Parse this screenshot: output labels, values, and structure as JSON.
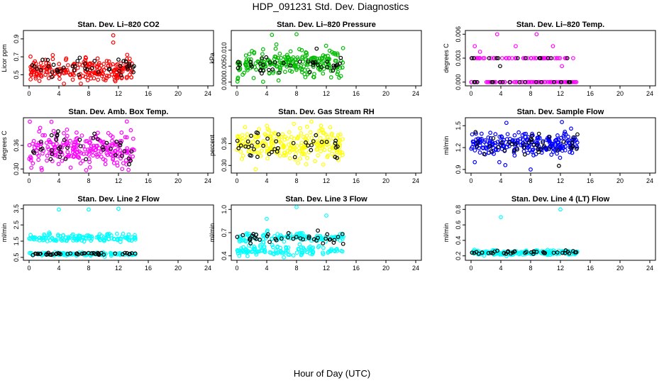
{
  "figure": {
    "title": "HDP_091231  Std. Dev. Diagnostics",
    "xlabel": "Hour of Day (UTC)"
  },
  "colors": {
    "red": "#ff0000",
    "green": "#00bb00",
    "magenta": "#ff00ff",
    "yellow": "#ffff00",
    "blue": "#0000ff",
    "cyan": "#00ffff",
    "black": "#000000"
  },
  "chart_data": [
    {
      "type": "scatter",
      "title": "Stan. Dev. Li–820 CO2",
      "ylabel": "Licor ppm",
      "xlim": [
        0,
        24
      ],
      "xticks": [
        "0",
        "4",
        "8",
        "12",
        "16",
        "20",
        "24"
      ],
      "ylim": [
        0.4,
        0.97
      ],
      "yticks": [
        {
          "v": 0.5,
          "l": "0.5"
        },
        {
          "v": 0.7,
          "l": "0.7"
        },
        {
          "v": 0.9,
          "l": "0.9"
        }
      ],
      "color": "red",
      "x_range": [
        0,
        14.3
      ],
      "bands": [
        {
          "center": 0.55,
          "spread": 0.07,
          "weight": 1.0
        }
      ],
      "outliers": [
        {
          "x": 11.3,
          "y": 0.94
        },
        {
          "x": 11.3,
          "y": 0.86
        },
        {
          "x": 13.5,
          "y": 0.68
        }
      ],
      "black_outliers": [
        {
          "x": 6.8,
          "y": 0.69
        },
        {
          "x": 13.0,
          "y": 0.65
        }
      ],
      "n": 220,
      "black_n": 40,
      "black_bands": [
        {
          "center": 0.58,
          "spread": 0.05,
          "weight": 1.0
        }
      ]
    },
    {
      "type": "scatter",
      "title": "Stan. Dev. Li–820 Pressure",
      "ylabel": "kPa",
      "xlim": [
        0,
        24
      ],
      "xticks": [
        "0",
        "4",
        "8",
        "12",
        "16",
        "20",
        "24"
      ],
      "ylim": [
        -0.0005,
        0.0155
      ],
      "yticks": [
        {
          "v": 0.0,
          "l": "0.000"
        },
        {
          "v": 0.005,
          "l": "0.005"
        },
        {
          "v": 0.01,
          "l": "0.010"
        }
      ],
      "color": "green",
      "x_range": [
        0,
        14.3
      ],
      "bands": [
        {
          "center": 0.0055,
          "spread": 0.0022,
          "weight": 1.0
        }
      ],
      "outliers": [
        {
          "x": 4.7,
          "y": 0.0148
        },
        {
          "x": 8.0,
          "y": 0.015
        },
        {
          "x": 5.3,
          "y": 0.0118
        }
      ],
      "black_outliers": [],
      "n": 230,
      "black_n": 40,
      "black_bands": [
        {
          "center": 0.0055,
          "spread": 0.0015,
          "weight": 1.0
        }
      ]
    },
    {
      "type": "scatter",
      "title": "Stan. Dev. Li–820 Temp.",
      "ylabel": "degrees C",
      "xlim": [
        0,
        24
      ],
      "xticks": [
        "0",
        "4",
        "8",
        "12",
        "16",
        "20",
        "24"
      ],
      "ylim": [
        -0.0002,
        0.0062
      ],
      "yticks": [
        {
          "v": 0.0,
          "l": "0.000"
        },
        {
          "v": 0.003,
          "l": "0.003"
        },
        {
          "v": 0.006,
          "l": "0.006"
        }
      ],
      "color": "magenta",
      "x_range": [
        0,
        14.3
      ],
      "bands": [
        {
          "center": 0.0,
          "spread": 0.0,
          "weight": 0.55
        },
        {
          "center": 0.003,
          "spread": 0.0,
          "weight": 0.45
        }
      ],
      "outliers": [
        {
          "x": 0.5,
          "y": 0.0045
        },
        {
          "x": 1.2,
          "y": 0.0038
        },
        {
          "x": 3.5,
          "y": 0.006
        },
        {
          "x": 6.0,
          "y": 0.0045
        },
        {
          "x": 8.8,
          "y": 0.006
        },
        {
          "x": 11.0,
          "y": 0.0045
        },
        {
          "x": 12.2,
          "y": 0.002
        }
      ],
      "black_outliers": [
        {
          "x": 3.9,
          "y": 0.002
        }
      ],
      "n": 150,
      "black_n": 30,
      "black_bands": [
        {
          "center": 0.0,
          "spread": 0.0,
          "weight": 0.5
        },
        {
          "center": 0.003,
          "spread": 0.0,
          "weight": 0.5
        }
      ]
    },
    {
      "type": "scatter",
      "title": "Stan. Dev. Amb. Box Temp.",
      "ylabel": "degrees C",
      "xlim": [
        0,
        24
      ],
      "xticks": [
        "0",
        "4",
        "8",
        "12",
        "16",
        "20",
        "24"
      ],
      "ylim": [
        0.295,
        0.425
      ],
      "yticks": [
        {
          "v": 0.3,
          "l": "0.30"
        },
        {
          "v": 0.36,
          "l": "0.36"
        }
      ],
      "color": "magenta",
      "x_range": [
        0,
        14.3
      ],
      "bands": [
        {
          "center": 0.352,
          "spread": 0.026,
          "weight": 1.0
        }
      ],
      "outliers": [
        {
          "x": 3.0,
          "y": 0.42
        },
        {
          "x": 12.5,
          "y": 0.3
        }
      ],
      "black_outliers": [],
      "n": 230,
      "black_n": 40,
      "black_bands": [
        {
          "center": 0.355,
          "spread": 0.022,
          "weight": 1.0
        }
      ]
    },
    {
      "type": "scatter",
      "title": "Stan. Dev. Gas Stream RH",
      "ylabel": "percent",
      "xlim": [
        0,
        24
      ],
      "xticks": [
        "0",
        "4",
        "8",
        "12",
        "16",
        "20",
        "24"
      ],
      "ylim": [
        0.285,
        0.425
      ],
      "yticks": [
        {
          "v": 0.3,
          "l": "0.30"
        },
        {
          "v": 0.36,
          "l": "0.36"
        }
      ],
      "color": "yellow",
      "x_range": [
        0,
        14.3
      ],
      "bands": [
        {
          "center": 0.355,
          "spread": 0.026,
          "weight": 1.0
        }
      ],
      "outliers": [
        {
          "x": 2.5,
          "y": 0.29
        },
        {
          "x": 10.0,
          "y": 0.42
        }
      ],
      "black_outliers": [],
      "n": 230,
      "black_n": 40,
      "black_bands": [
        {
          "center": 0.358,
          "spread": 0.022,
          "weight": 1.0
        }
      ]
    },
    {
      "type": "scatter",
      "title": "Stan. Dev. Sample Flow",
      "ylabel": "ml/min",
      "xlim": [
        0,
        24
      ],
      "xticks": [
        "0",
        "4",
        "8",
        "12",
        "16",
        "20",
        "24"
      ],
      "ylim": [
        0.88,
        1.58
      ],
      "yticks": [
        {
          "v": 0.9,
          "l": "0.9"
        },
        {
          "v": 1.2,
          "l": "1.2"
        },
        {
          "v": 1.5,
          "l": "1.5"
        }
      ],
      "color": "blue",
      "x_range": [
        0,
        14.3
      ],
      "bands": [
        {
          "center": 1.25,
          "spread": 0.08,
          "weight": 1.0
        }
      ],
      "outliers": [
        {
          "x": 12.2,
          "y": 1.55
        },
        {
          "x": 3.8,
          "y": 1.0
        },
        {
          "x": 4.6,
          "y": 0.96
        },
        {
          "x": 8.0,
          "y": 0.9
        },
        {
          "x": 0.5,
          "y": 1.0
        }
      ],
      "black_outliers": [
        {
          "x": 11.8,
          "y": 0.95
        }
      ],
      "n": 240,
      "black_n": 40,
      "black_bands": [
        {
          "center": 1.22,
          "spread": 0.08,
          "weight": 1.0
        }
      ]
    },
    {
      "type": "scatter",
      "title": "Stan. Dev. Line 2 Flow",
      "ylabel": "ml/min",
      "xlim": [
        0,
        24
      ],
      "xticks": [
        "0",
        "4",
        "8",
        "12",
        "16",
        "20",
        "24"
      ],
      "ylim": [
        0.45,
        3.6
      ],
      "yticks": [
        {
          "v": 0.5,
          "l": "0.5"
        },
        {
          "v": 1.5,
          "l": "1.5"
        },
        {
          "v": 2.5,
          "l": "2.5"
        },
        {
          "v": 3.5,
          "l": "3.5"
        }
      ],
      "color": "cyan",
      "x_range": [
        0,
        14.3
      ],
      "bands": [
        {
          "center": 1.7,
          "spread": 0.15,
          "weight": 0.6
        },
        {
          "center": 0.7,
          "spread": 0.06,
          "weight": 0.4
        }
      ],
      "outliers": [
        {
          "x": 4.0,
          "y": 3.45
        },
        {
          "x": 8.0,
          "y": 3.45
        },
        {
          "x": 12.0,
          "y": 3.5
        }
      ],
      "black_outliers": [],
      "n": 240,
      "black_n": 45,
      "black_bands": [
        {
          "center": 0.72,
          "spread": 0.04,
          "weight": 1.0
        }
      ]
    },
    {
      "type": "scatter",
      "title": "Stan. Dev. Line 3 Flow",
      "ylabel": "ml/min",
      "xlim": [
        0,
        24
      ],
      "xticks": [
        "0",
        "4",
        "8",
        "12",
        "16",
        "20",
        "24"
      ],
      "ylim": [
        0.37,
        1.03
      ],
      "yticks": [
        {
          "v": 0.4,
          "l": "0.4"
        },
        {
          "v": 0.7,
          "l": "0.7"
        },
        {
          "v": 1.0,
          "l": "1.0"
        }
      ],
      "color": "cyan",
      "x_range": [
        0,
        14.3
      ],
      "bands": [
        {
          "center": 0.64,
          "spread": 0.03,
          "weight": 0.5
        },
        {
          "center": 0.47,
          "spread": 0.04,
          "weight": 0.5
        }
      ],
      "outliers": [
        {
          "x": 4.0,
          "y": 0.88
        },
        {
          "x": 8.0,
          "y": 1.03
        },
        {
          "x": 12.0,
          "y": 0.92
        }
      ],
      "black_outliers": [],
      "n": 240,
      "black_n": 40,
      "black_bands": [
        {
          "center": 0.62,
          "spread": 0.04,
          "weight": 1.0
        }
      ]
    },
    {
      "type": "scatter",
      "title": "Stan. Dev. Line 4 (LT) Flow",
      "ylabel": "ml/min",
      "xlim": [
        0,
        24
      ],
      "xticks": [
        "0",
        "4",
        "8",
        "12",
        "16",
        "20",
        "24"
      ],
      "ylim": [
        0.17,
        0.83
      ],
      "yticks": [
        {
          "v": 0.2,
          "l": "0.2"
        },
        {
          "v": 0.4,
          "l": "0.4"
        },
        {
          "v": 0.6,
          "l": "0.6"
        },
        {
          "v": 0.8,
          "l": "0.8"
        }
      ],
      "color": "cyan",
      "x_range": [
        0,
        14.3
      ],
      "bands": [
        {
          "center": 0.24,
          "spread": 0.018,
          "weight": 1.0
        }
      ],
      "outliers": [
        {
          "x": 4.0,
          "y": 0.7
        },
        {
          "x": 12.0,
          "y": 0.8
        }
      ],
      "black_outliers": [],
      "n": 200,
      "black_n": 40,
      "black_bands": [
        {
          "center": 0.24,
          "spread": 0.012,
          "weight": 1.0
        }
      ]
    }
  ]
}
